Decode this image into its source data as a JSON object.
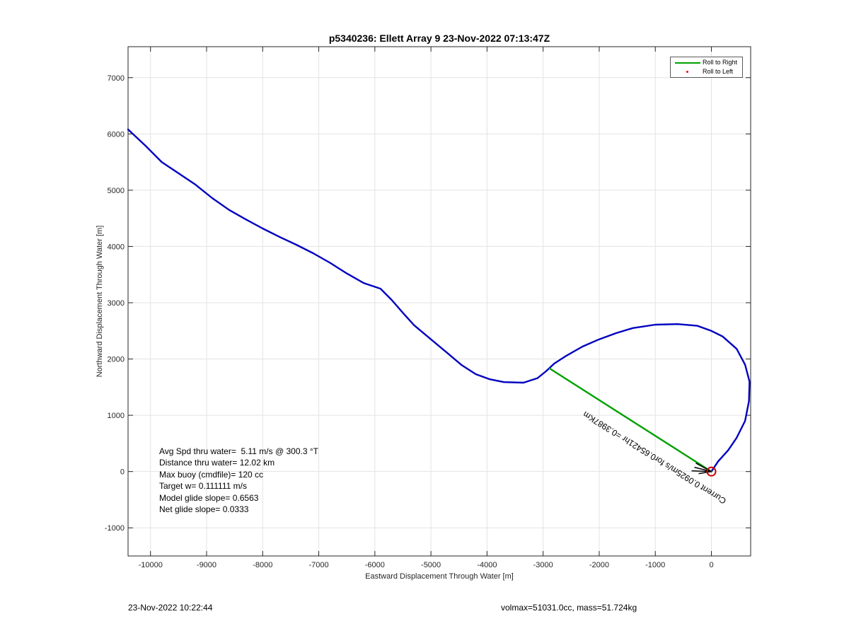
{
  "chart_data": {
    "type": "line",
    "title": "p5340236: Ellett Array 9 23-Nov-2022 07:13:47Z",
    "xlabel": "Eastward Displacement Through Water [m]",
    "ylabel": "Northward Displacement Through Water [m]",
    "xlim": [
      -10400,
      700
    ],
    "ylim": [
      -1500,
      7550
    ],
    "x_ticks": [
      -10000,
      -9000,
      -8000,
      -7000,
      -6000,
      -5000,
      -4000,
      -3000,
      -2000,
      -1000,
      0
    ],
    "y_ticks": [
      -1000,
      0,
      1000,
      2000,
      3000,
      4000,
      5000,
      6000,
      7000
    ],
    "grid": true,
    "legend": {
      "placement": "top-right",
      "entries": [
        {
          "label": "Roll to Right",
          "color": "#00a000",
          "marker": "line"
        },
        {
          "label": "Roll to Left",
          "color": "#ff0000",
          "marker": "dot"
        }
      ]
    },
    "series": [
      {
        "color": "#0000c0",
        "x": [
          -10400,
          -10100,
          -9800,
          -9500,
          -9200,
          -8900,
          -8600,
          -8300,
          -8000,
          -7700,
          -7400,
          -7100,
          -6800,
          -6500,
          -6200,
          -5900,
          -5700,
          -5500,
          -5300,
          -5000,
          -4700,
          -4450,
          -4200,
          -3950,
          -3700,
          -3350,
          -3100,
          -2950,
          -2800,
          -2600,
          -2300,
          -2000,
          -1700,
          -1400,
          -1000,
          -600,
          -250,
          0,
          200,
          450,
          600,
          680,
          670,
          600,
          450,
          300,
          120,
          0
        ],
        "y": [
          6080,
          5800,
          5500,
          5300,
          5100,
          4860,
          4650,
          4480,
          4320,
          4170,
          4030,
          3880,
          3710,
          3520,
          3350,
          3250,
          3050,
          2820,
          2600,
          2350,
          2100,
          1890,
          1730,
          1640,
          1590,
          1580,
          1660,
          1780,
          1920,
          2050,
          2220,
          2350,
          2460,
          2550,
          2610,
          2620,
          2590,
          2500,
          2400,
          2180,
          1900,
          1600,
          1250,
          900,
          600,
          380,
          180,
          0
        ]
      },
      {
        "color": "#00a000",
        "x": [
          -2880,
          0
        ],
        "y": [
          1830,
          0
        ]
      }
    ],
    "annotations": [
      {
        "text": "Current 0.0925m/s for0.65421hr =0.3987Km",
        "x": -2400,
        "y": 1050
      }
    ],
    "markers": [
      {
        "shape": "circle",
        "color": "#d00000",
        "x": 0,
        "y": 0
      }
    ]
  },
  "stats": {
    "avg_speed": "Avg Spd thru water=  5.11 m/s @ 300.3 °T",
    "distance": "Distance thru water= 12.02 km",
    "max_buoy": "Max buoy (cmdfile)= 120 cc",
    "target_w": "Target w= 0.111111 m/s",
    "model_glide": "Model glide slope= 0.6563",
    "net_glide": "Net glide slope= 0.0333"
  },
  "footer": {
    "timestamp": "23-Nov-2022 10:22:44",
    "vol_mass": "volmax=51031.0cc, mass=51.724kg"
  }
}
